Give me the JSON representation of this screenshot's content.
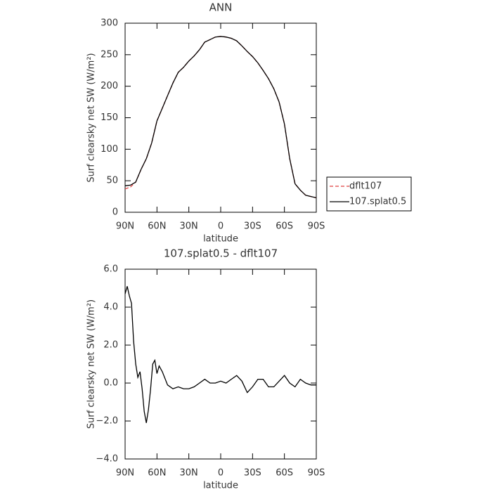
{
  "chart_data": [
    {
      "type": "line",
      "title": "ANN",
      "xlabel": "latitude",
      "ylabel": "Surf clearsky net SW (W/m²)",
      "x": [
        90,
        85,
        80,
        75,
        70,
        65,
        60,
        55,
        50,
        45,
        40,
        35,
        30,
        25,
        20,
        15,
        10,
        5,
        0,
        -5,
        -10,
        -15,
        -20,
        -25,
        -30,
        -35,
        -40,
        -45,
        -50,
        -55,
        -60,
        -65,
        -70,
        -75,
        -80,
        -85,
        -90
      ],
      "series": [
        {
          "name": "dflt107",
          "color": "#e04040",
          "dash": true,
          "values": [
            37,
            40,
            48,
            68,
            85,
            110,
            145,
            165,
            185,
            205,
            222,
            230,
            240,
            248,
            258,
            270,
            274,
            278,
            279,
            278,
            276,
            272,
            264,
            255,
            247,
            237,
            225,
            212,
            196,
            175,
            140,
            85,
            45,
            35,
            27,
            25,
            23
          ]
        },
        {
          "name": "107.splat0.5",
          "color": "#000000",
          "dash": false,
          "values": [
            42,
            43,
            48,
            68,
            85,
            110,
            145,
            165,
            185,
            205,
            222,
            230,
            240,
            248,
            258,
            270,
            274,
            278,
            279,
            278,
            276,
            272,
            264,
            255,
            247,
            237,
            225,
            212,
            196,
            175,
            140,
            85,
            45,
            35,
            27,
            25,
            23
          ]
        }
      ],
      "xlim": [
        90,
        -90
      ],
      "xticks": [
        {
          "value": 90,
          "label": "90N"
        },
        {
          "value": 60,
          "label": "60N"
        },
        {
          "value": 30,
          "label": "30N"
        },
        0,
        {
          "value": -30,
          "label": "30S"
        },
        {
          "value": -60,
          "label": "60S"
        },
        {
          "value": -90,
          "label": "90S"
        }
      ],
      "ylim": [
        0,
        300
      ],
      "yticks": [
        0,
        50,
        100,
        150,
        200,
        250,
        300
      ],
      "legend": "right"
    },
    {
      "type": "line",
      "title": "107.splat0.5 - dflt107",
      "xlabel": "latitude",
      "ylabel": "Surf clearsky net SW (W/m²)",
      "x": [
        90,
        88,
        86,
        84,
        82,
        80,
        78,
        76,
        74,
        72,
        70,
        68,
        66,
        64,
        62,
        60,
        58,
        55,
        50,
        45,
        40,
        35,
        30,
        25,
        20,
        15,
        10,
        5,
        0,
        -5,
        -10,
        -15,
        -20,
        -25,
        -30,
        -35,
        -40,
        -45,
        -50,
        -55,
        -60,
        -65,
        -70,
        -75,
        -80,
        -85,
        -90
      ],
      "series": [
        {
          "color": "#000000",
          "dash": false,
          "values": [
            4.7,
            5.1,
            4.6,
            4.2,
            2.2,
            1.0,
            0.3,
            0.6,
            -0.3,
            -1.5,
            -2.1,
            -1.4,
            -0.3,
            1.0,
            1.2,
            0.5,
            0.9,
            0.6,
            -0.1,
            -0.3,
            -0.2,
            -0.3,
            -0.3,
            -0.2,
            0.0,
            0.2,
            0.0,
            0.0,
            0.1,
            0.0,
            0.2,
            0.4,
            0.1,
            -0.5,
            -0.2,
            0.2,
            0.2,
            -0.2,
            -0.2,
            0.1,
            0.4,
            0.0,
            -0.2,
            0.2,
            0.0,
            -0.1,
            -0.1
          ]
        }
      ],
      "xlim": [
        90,
        -90
      ],
      "xticks": [
        {
          "value": 90,
          "label": "90N"
        },
        {
          "value": 60,
          "label": "60N"
        },
        {
          "value": 30,
          "label": "30N"
        },
        0,
        {
          "value": -30,
          "label": "30S"
        },
        {
          "value": -60,
          "label": "60S"
        },
        {
          "value": -90,
          "label": "90S"
        }
      ],
      "ylim": [
        -4,
        6
      ],
      "yticks": [
        {
          "value": -4,
          "label": "−4.0"
        },
        {
          "value": -2,
          "label": "−2.0"
        },
        {
          "value": 0,
          "label": "0.0"
        },
        {
          "value": 2,
          "label": "2.0"
        },
        {
          "value": 4,
          "label": "4.0"
        },
        {
          "value": 6,
          "label": "6.0"
        }
      ]
    }
  ]
}
